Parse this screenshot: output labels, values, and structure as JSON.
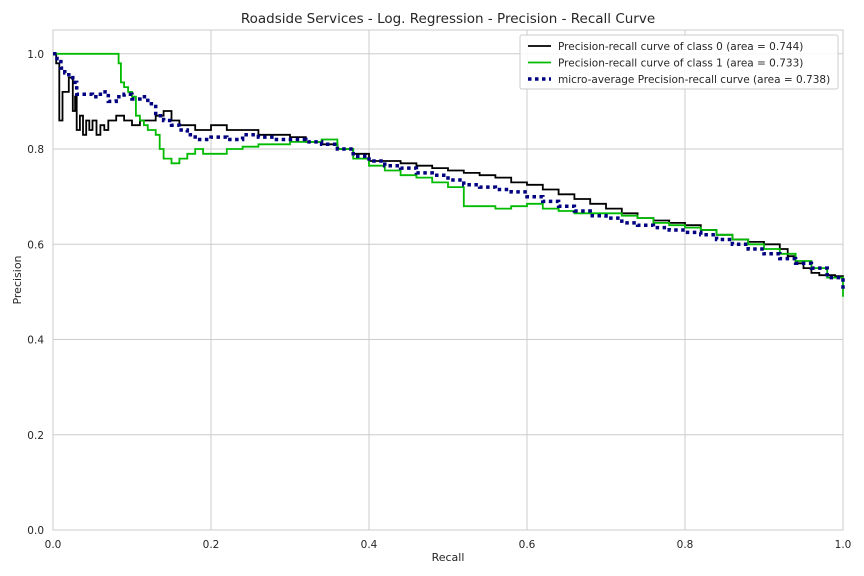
{
  "chart_data": {
    "type": "line",
    "title": "Roadside Services  - Log. Regression - Precision - Recall Curve",
    "xlabel": "Recall",
    "ylabel": "Precision",
    "xlim": [
      0.0,
      1.0
    ],
    "ylim": [
      0.0,
      1.05
    ],
    "xticks": [
      "0.0",
      "0.2",
      "0.4",
      "0.6",
      "0.8",
      "1.0"
    ],
    "yticks": [
      "0.0",
      "0.2",
      "0.4",
      "0.6",
      "0.8",
      "1.0"
    ],
    "grid": true,
    "legend_position": "top-right",
    "series": [
      {
        "name": "Precision-recall curve of class 0 (area = 0.744)",
        "color": "#000000",
        "style": "solid",
        "x": [
          0.0,
          0.004,
          0.008,
          0.012,
          0.02,
          0.025,
          0.028,
          0.03,
          0.034,
          0.038,
          0.042,
          0.046,
          0.05,
          0.055,
          0.06,
          0.065,
          0.07,
          0.08,
          0.09,
          0.1,
          0.11,
          0.12,
          0.13,
          0.14,
          0.15,
          0.16,
          0.17,
          0.18,
          0.2,
          0.22,
          0.24,
          0.26,
          0.28,
          0.3,
          0.32,
          0.34,
          0.36,
          0.38,
          0.4,
          0.42,
          0.44,
          0.46,
          0.48,
          0.5,
          0.52,
          0.54,
          0.56,
          0.58,
          0.6,
          0.62,
          0.64,
          0.66,
          0.68,
          0.7,
          0.72,
          0.74,
          0.76,
          0.78,
          0.8,
          0.82,
          0.84,
          0.86,
          0.88,
          0.9,
          0.92,
          0.93,
          0.94,
          0.95,
          0.96,
          0.97,
          0.98,
          0.99,
          1.0
        ],
        "y": [
          1.0,
          0.98,
          0.86,
          0.92,
          0.95,
          0.88,
          0.91,
          0.84,
          0.87,
          0.83,
          0.86,
          0.84,
          0.86,
          0.83,
          0.85,
          0.84,
          0.86,
          0.87,
          0.86,
          0.85,
          0.86,
          0.86,
          0.87,
          0.88,
          0.86,
          0.85,
          0.85,
          0.84,
          0.85,
          0.84,
          0.84,
          0.83,
          0.83,
          0.825,
          0.815,
          0.81,
          0.8,
          0.79,
          0.775,
          0.775,
          0.77,
          0.765,
          0.76,
          0.755,
          0.75,
          0.745,
          0.74,
          0.73,
          0.725,
          0.715,
          0.705,
          0.695,
          0.685,
          0.675,
          0.665,
          0.655,
          0.65,
          0.645,
          0.64,
          0.63,
          0.62,
          0.61,
          0.605,
          0.6,
          0.59,
          0.575,
          0.56,
          0.55,
          0.54,
          0.535,
          0.535,
          0.533,
          0.532
        ]
      },
      {
        "name": "Precision-recall curve of class 1 (area = 0.733)",
        "color": "#00bb00",
        "style": "solid",
        "x": [
          0.0,
          0.02,
          0.04,
          0.06,
          0.08,
          0.083,
          0.086,
          0.09,
          0.095,
          0.1,
          0.105,
          0.11,
          0.115,
          0.12,
          0.13,
          0.135,
          0.14,
          0.15,
          0.16,
          0.17,
          0.18,
          0.19,
          0.2,
          0.22,
          0.24,
          0.26,
          0.28,
          0.3,
          0.32,
          0.34,
          0.36,
          0.38,
          0.4,
          0.42,
          0.44,
          0.46,
          0.48,
          0.5,
          0.52,
          0.54,
          0.56,
          0.58,
          0.6,
          0.62,
          0.64,
          0.66,
          0.68,
          0.7,
          0.72,
          0.74,
          0.76,
          0.78,
          0.8,
          0.82,
          0.84,
          0.86,
          0.88,
          0.9,
          0.92,
          0.94,
          0.96,
          0.98,
          1.0
        ],
        "y": [
          1.0,
          1.0,
          1.0,
          1.0,
          1.0,
          0.98,
          0.94,
          0.93,
          0.92,
          0.91,
          0.87,
          0.86,
          0.85,
          0.84,
          0.83,
          0.8,
          0.78,
          0.77,
          0.78,
          0.79,
          0.8,
          0.79,
          0.79,
          0.8,
          0.805,
          0.81,
          0.81,
          0.815,
          0.815,
          0.82,
          0.8,
          0.78,
          0.765,
          0.755,
          0.745,
          0.74,
          0.73,
          0.72,
          0.68,
          0.68,
          0.675,
          0.68,
          0.685,
          0.675,
          0.67,
          0.665,
          0.665,
          0.665,
          0.66,
          0.655,
          0.645,
          0.64,
          0.635,
          0.63,
          0.62,
          0.61,
          0.6,
          0.59,
          0.58,
          0.565,
          0.55,
          0.53,
          0.49
        ]
      },
      {
        "name": "micro-average Precision-recall curve (area = 0.738)",
        "color": "#000080",
        "style": "dotted",
        "x": [
          0.0,
          0.005,
          0.01,
          0.015,
          0.02,
          0.025,
          0.03,
          0.04,
          0.05,
          0.06,
          0.07,
          0.08,
          0.09,
          0.1,
          0.11,
          0.12,
          0.13,
          0.14,
          0.15,
          0.16,
          0.17,
          0.18,
          0.2,
          0.22,
          0.24,
          0.26,
          0.28,
          0.3,
          0.32,
          0.34,
          0.36,
          0.38,
          0.4,
          0.42,
          0.44,
          0.46,
          0.48,
          0.5,
          0.52,
          0.54,
          0.56,
          0.58,
          0.6,
          0.62,
          0.64,
          0.66,
          0.68,
          0.7,
          0.72,
          0.74,
          0.76,
          0.78,
          0.8,
          0.82,
          0.84,
          0.86,
          0.88,
          0.9,
          0.92,
          0.94,
          0.96,
          0.98,
          1.0
        ],
        "y": [
          1.0,
          0.99,
          0.97,
          0.96,
          0.95,
          0.94,
          0.915,
          0.915,
          0.91,
          0.92,
          0.9,
          0.91,
          0.915,
          0.905,
          0.91,
          0.895,
          0.87,
          0.86,
          0.85,
          0.84,
          0.83,
          0.82,
          0.825,
          0.82,
          0.83,
          0.825,
          0.82,
          0.82,
          0.815,
          0.81,
          0.8,
          0.785,
          0.775,
          0.765,
          0.76,
          0.75,
          0.745,
          0.735,
          0.725,
          0.72,
          0.715,
          0.71,
          0.7,
          0.69,
          0.68,
          0.67,
          0.66,
          0.655,
          0.645,
          0.64,
          0.635,
          0.63,
          0.625,
          0.62,
          0.61,
          0.6,
          0.59,
          0.58,
          0.57,
          0.56,
          0.55,
          0.53,
          0.5
        ]
      }
    ]
  }
}
